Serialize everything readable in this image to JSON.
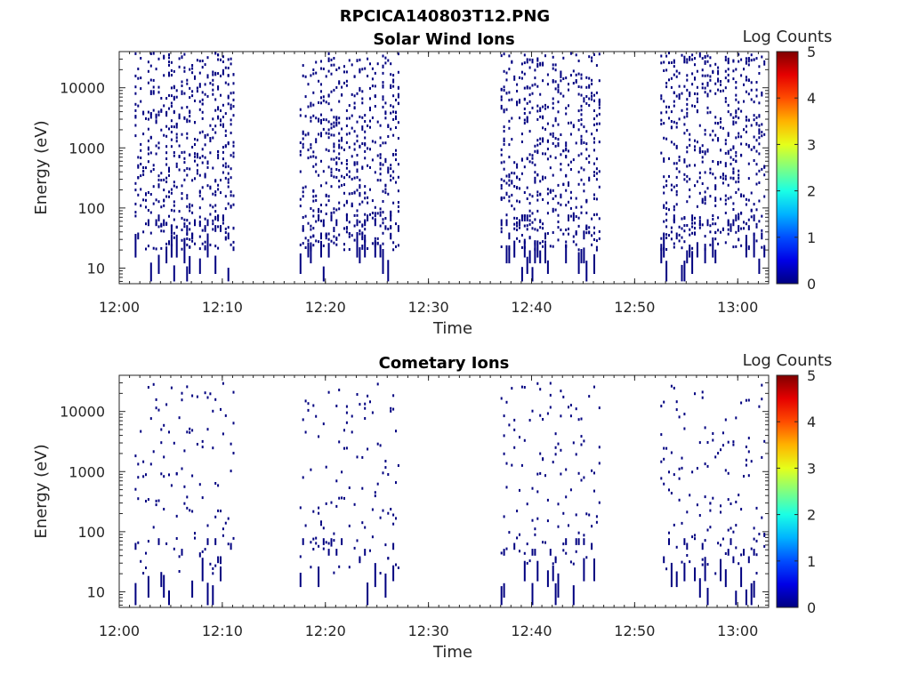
{
  "figure_title": "RPCICA140803T12.PNG",
  "colors": {
    "event": "#000080",
    "axis": "#262626"
  },
  "colorbar": {
    "label": "Log Counts",
    "range": [
      0,
      5
    ],
    "ticks": [
      "0",
      "1",
      "2",
      "3",
      "4",
      "5"
    ],
    "colormap": "jet"
  },
  "chart_data": [
    {
      "type": "heatmap",
      "title": "Solar Wind Ions",
      "xlabel": "Time",
      "ylabel": "Energy (eV)",
      "xlim": [
        "12:00",
        "13:03"
      ],
      "ylim": [
        5.5,
        40000
      ],
      "yscale": "log",
      "x_ticks": [
        "12:00",
        "12:10",
        "12:20",
        "12:30",
        "12:40",
        "12:50",
        "13:00"
      ],
      "y_ticks": [
        "10",
        "100",
        "1000",
        "10000"
      ],
      "value_range_log_counts": [
        0,
        0.3
      ],
      "bursts": [
        {
          "start": "12:01:30",
          "end": "12:11:00",
          "e_min": 6,
          "e_max": 38000
        },
        {
          "start": "12:17:30",
          "end": "12:27:00",
          "e_min": 6,
          "e_max": 38000
        },
        {
          "start": "12:37:00",
          "end": "12:46:30",
          "e_min": 6,
          "e_max": 38000
        },
        {
          "start": "12:52:30",
          "end": "13:02:30",
          "e_min": 6,
          "e_max": 38000
        }
      ]
    },
    {
      "type": "heatmap",
      "title": "Cometary Ions",
      "xlabel": "Time",
      "ylabel": "Energy (eV)",
      "xlim": [
        "12:00",
        "13:03"
      ],
      "ylim": [
        5.5,
        40000
      ],
      "yscale": "log",
      "x_ticks": [
        "12:00",
        "12:10",
        "12:20",
        "12:30",
        "12:40",
        "12:50",
        "13:00"
      ],
      "y_ticks": [
        "10",
        "100",
        "1000",
        "10000"
      ],
      "value_range_log_counts": [
        0,
        0.3
      ],
      "bursts": [
        {
          "start": "12:01:30",
          "end": "12:11:00",
          "e_min": 6,
          "e_max": 30000
        },
        {
          "start": "12:17:30",
          "end": "12:27:00",
          "e_min": 6,
          "e_max": 30000
        },
        {
          "start": "12:37:00",
          "end": "12:46:30",
          "e_min": 6,
          "e_max": 30000
        },
        {
          "start": "12:52:30",
          "end": "13:02:30",
          "e_min": 6,
          "e_max": 30000
        }
      ]
    }
  ]
}
